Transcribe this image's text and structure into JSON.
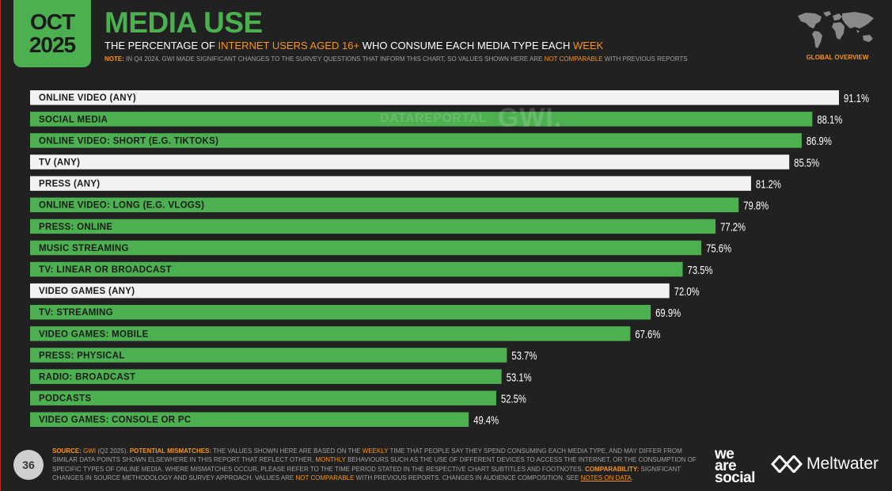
{
  "badge": {
    "month": "OCT",
    "year": "2025"
  },
  "title": "MEDIA USE",
  "subtitle": {
    "pre": "THE PERCENTAGE OF ",
    "highlight1": "INTERNET USERS AGED 16+",
    "mid": " WHO CONSUME EACH MEDIA TYPE EACH ",
    "highlight2": "WEEK"
  },
  "note": {
    "label": "NOTE:",
    "text": " IN Q4 2024, GWI MADE SIGNIFICANT CHANGES TO THE SURVEY QUESTIONS THAT INFORM THIS CHART, SO VALUES SHOWN HERE ARE ",
    "highlight": "NOT COMPARABLE",
    "tail": " WITH PREVIOUS REPORTS"
  },
  "region_label": "GLOBAL OVERVIEW",
  "watermark": {
    "brand1": "DATAREPORTAL",
    "brand2": "GWI."
  },
  "colors": {
    "accent_green": "#4caf50",
    "orange": "#f7941d",
    "total_bar": "#f2f2f2",
    "background": "#212121"
  },
  "chart_data": {
    "type": "bar",
    "orientation": "horizontal",
    "categories": [
      "ONLINE VIDEO (ANY)",
      "SOCIAL MEDIA",
      "ONLINE VIDEO: SHORT (E.G. TIKTOKS)",
      "TV (ANY)",
      "PRESS (ANY)",
      "ONLINE VIDEO: LONG (E.G. VLOGS)",
      "PRESS: ONLINE",
      "MUSIC STREAMING",
      "TV: LINEAR OR BROADCAST",
      "VIDEO GAMES (ANY)",
      "TV: STREAMING",
      "VIDEO GAMES: MOBILE",
      "PRESS: PHYSICAL",
      "RADIO: BROADCAST",
      "PODCASTS",
      "VIDEO GAMES: CONSOLE OR PC"
    ],
    "values": [
      91.1,
      88.1,
      86.9,
      85.5,
      81.2,
      79.8,
      77.2,
      75.6,
      73.5,
      72.0,
      69.9,
      67.6,
      53.7,
      53.1,
      52.5,
      49.4
    ],
    "value_labels": [
      "91.1%",
      "88.1%",
      "86.9%",
      "85.5%",
      "81.2%",
      "79.8%",
      "77.2%",
      "75.6%",
      "73.5%",
      "72.0%",
      "69.9%",
      "67.6%",
      "53.7%",
      "53.1%",
      "52.5%",
      "49.4%"
    ],
    "bar_style": [
      "total",
      "sub",
      "sub",
      "total",
      "total",
      "sub",
      "sub",
      "sub",
      "sub",
      "total",
      "sub",
      "sub",
      "sub",
      "sub",
      "sub",
      "sub"
    ],
    "unit": "%",
    "xlim": [
      0,
      100
    ],
    "grid": false,
    "title": "",
    "xlabel": "",
    "ylabel": ""
  },
  "footer": {
    "page_number": "36",
    "source_label": "SOURCE:",
    "source_org": "GWI",
    "source_period": " (Q2 2025). ",
    "mismatch_label": "POTENTIAL MISMATCHES:",
    "mismatch_a": " THE VALUES SHOWN HERE ARE BASED ON THE ",
    "weekly": "WEEKLY",
    "mismatch_b": " TIME THAT PEOPLE SAY THEY SPEND CONSUMING EACH MEDIA TYPE, AND MAY DIFFER FROM SIMILAR DATA POINTS SHOWN ELSEWHERE IN THIS REPORT THAT REFLECT OTHER, ",
    "monthly": "MONTHLY",
    "mismatch_c": " BEHAVIOURS SUCH AS THE USE OF DIFFERENT DEVICES TO ACCESS THE INTERNET, OR THE CONSUMPTION OF SPECIFIC TYPES OF ONLINE MEDIA. WHERE MISMATCHES OCCUR, PLEASE REFER TO THE TIME PERIOD STATED IN THE RESPECTIVE CHART SUBTITLES AND FOOTNOTES. ",
    "comparability_label": "COMPARABILITY:",
    "comparability_a": " SIGNIFICANT CHANGES IN SOURCE METHODOLOGY AND SURVEY APPROACH. VALUES ARE ",
    "not_comparable": "NOT COMPARABLE",
    "comparability_b": " WITH PREVIOUS REPORTS. CHANGES IN AUDIENCE COMPOSITION. SEE ",
    "notes_link": "NOTES ON DATA",
    "end": ".",
    "logo1_line1": "we",
    "logo1_line2": "are",
    "logo1_line3": "social",
    "logo2": "Meltwater"
  }
}
